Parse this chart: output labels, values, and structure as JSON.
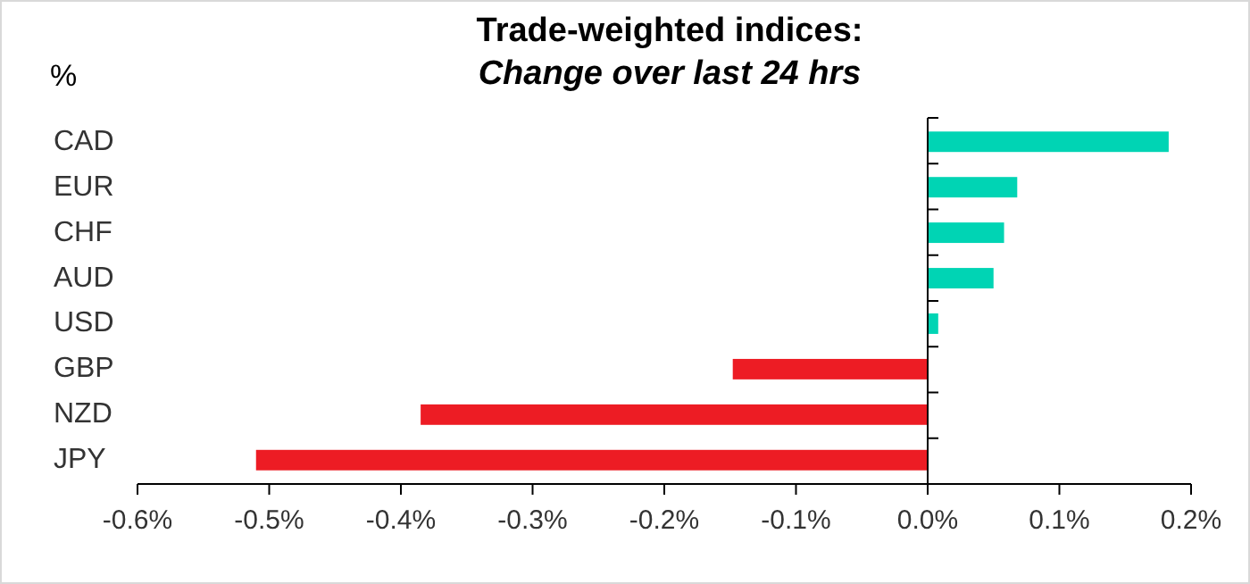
{
  "chart_data": {
    "type": "bar",
    "orientation": "horizontal",
    "title": "Trade-weighted indices:",
    "subtitle": "Change over last 24 hrs",
    "ylabel": "%",
    "categories": [
      "CAD",
      "EUR",
      "CHF",
      "AUD",
      "USD",
      "GBP",
      "NZD",
      "JPY"
    ],
    "values": [
      0.183,
      0.068,
      0.058,
      0.05,
      0.008,
      -0.148,
      -0.385,
      -0.51
    ],
    "colors": [
      "#00d4b4",
      "#00d4b4",
      "#00d4b4",
      "#00d4b4",
      "#00d4b4",
      "#ed1c24",
      "#ed1c24",
      "#ed1c24"
    ],
    "xlim": [
      -0.6,
      0.2
    ],
    "xticks": [
      {
        "value": -0.6,
        "label": "-0.6%"
      },
      {
        "value": -0.5,
        "label": "-0.5%"
      },
      {
        "value": -0.4,
        "label": "-0.4%"
      },
      {
        "value": -0.3,
        "label": "-0.3%"
      },
      {
        "value": -0.2,
        "label": "-0.2%"
      },
      {
        "value": -0.1,
        "label": "-0.1%"
      },
      {
        "value": 0,
        "label": "0.0%"
      },
      {
        "value": 0.1,
        "label": "0.1%"
      },
      {
        "value": 0.2,
        "label": "0.2%"
      }
    ]
  }
}
